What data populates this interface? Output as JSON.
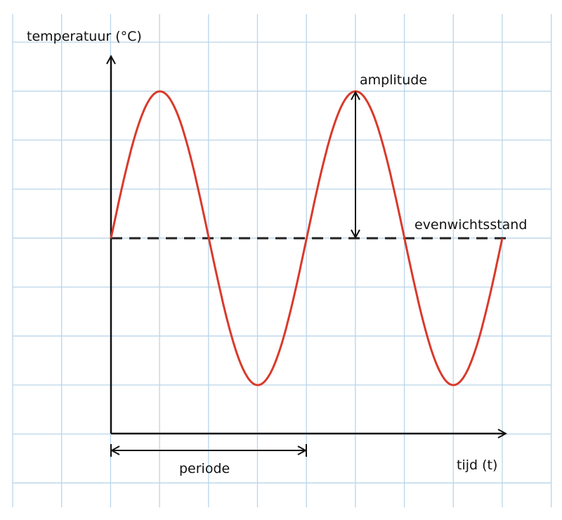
{
  "labels": {
    "y_axis": "temperatuur (°C)",
    "amplitude": "amplitude",
    "equilibrium": "evenwichtsstand",
    "period": "periode",
    "x_axis": "tijd (t)"
  }
}
